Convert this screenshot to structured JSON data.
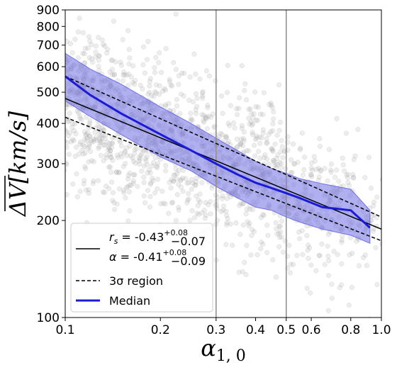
{
  "chart_data": {
    "type": "scatter",
    "xscale": "log",
    "yscale": "log",
    "xlim": [
      0.1,
      1.0
    ],
    "ylim": [
      100,
      900
    ],
    "xlabel": "α₁,₀",
    "ylabel": "ΔV[km/s]",
    "xticks": [
      0.1,
      0.2,
      0.3,
      0.4,
      0.5,
      0.6,
      0.8,
      1.0
    ],
    "xtick_labels": [
      "0.1",
      "0.2",
      "0.3",
      "0.4",
      "0.5",
      "0.6",
      "0.8",
      "1.0"
    ],
    "yticks": [
      100,
      200,
      300,
      400,
      500,
      600,
      700,
      800,
      900
    ],
    "ytick_labels": [
      "100",
      "200",
      "300",
      "400",
      "500",
      "600",
      "700",
      "800",
      "900"
    ],
    "vertical_lines": [
      0.3,
      0.5
    ],
    "legend_placement": "lower-left",
    "colors": {
      "scatter": "#9a9a9a",
      "median": "#1a1ad8",
      "band": "#6f6fe6",
      "fit": "#000000",
      "vline": "#8c8c8c"
    },
    "fit": {
      "x": [
        0.1,
        1.0
      ],
      "y": [
        478,
        188
      ],
      "legend_rs_main": "r",
      "legend_rs_sub": "s",
      "legend_rs_value": " = -0.43",
      "legend_rs_err_up": "+0.08",
      "legend_rs_err_down": "−0.07",
      "legend_alpha_main": "α",
      "legend_alpha_value": " = -0.41",
      "legend_alpha_err_up": "+0.08",
      "legend_alpha_err_down": "−0.09"
    },
    "sigma_region": {
      "label": "3σ region",
      "upper": {
        "x": [
          0.1,
          1.0
        ],
        "y": [
          560,
          205
        ]
      },
      "lower": {
        "x": [
          0.1,
          1.0
        ],
        "y": [
          418,
          173
        ]
      }
    },
    "series": [
      {
        "name": "Median",
        "x": [
          0.1,
          0.12,
          0.15,
          0.2,
          0.25,
          0.3,
          0.35,
          0.4,
          0.45,
          0.5,
          0.55,
          0.65,
          0.8,
          0.92
        ],
        "y": [
          560,
          490,
          430,
          370,
          330,
          300,
          278,
          262,
          252,
          243,
          235,
          220,
          215,
          190
        ],
        "band_upper": [
          660,
          590,
          530,
          450,
          400,
          360,
          330,
          305,
          290,
          280,
          270,
          260,
          250,
          215
        ],
        "band_lower": [
          470,
          420,
          370,
          315,
          285,
          255,
          235,
          220,
          215,
          205,
          198,
          188,
          180,
          170
        ]
      }
    ],
    "scatter_cloud": {
      "note_only_for_shape": "",
      "count": 1500,
      "center_logx_range": [
        0.1,
        1.0
      ],
      "spread": 0.22
    }
  }
}
